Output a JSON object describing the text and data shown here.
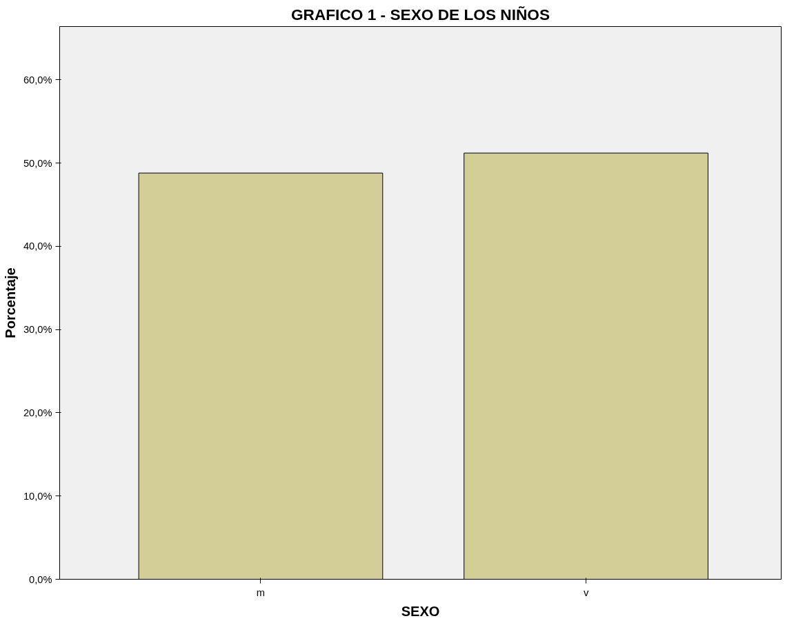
{
  "chart_data": {
    "type": "bar",
    "title": "GRAFICO 1 - SEXO DE LOS NIÑOS",
    "xlabel": "SEXO",
    "ylabel": "Porcentaje",
    "categories": [
      "m",
      "v"
    ],
    "values": [
      48.8,
      51.2
    ],
    "color": "#d3ce98",
    "ylim": [
      0,
      66.4
    ],
    "yticks": [
      {
        "value": 0,
        "label": "0,0%"
      },
      {
        "value": 10,
        "label": "10,0%"
      },
      {
        "value": 20,
        "label": "20,0%"
      },
      {
        "value": 30,
        "label": "30,0%"
      },
      {
        "value": 40,
        "label": "40,0%"
      },
      {
        "value": 50,
        "label": "50,0%"
      },
      {
        "value": 60,
        "label": "60,0%"
      }
    ],
    "grid": false
  }
}
